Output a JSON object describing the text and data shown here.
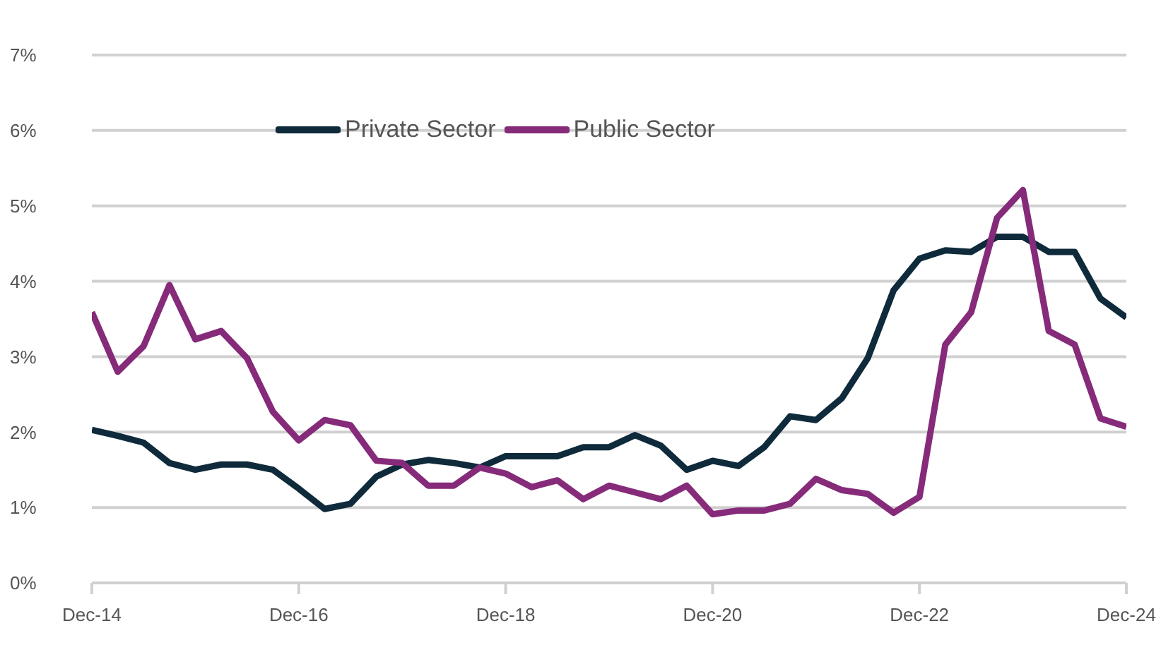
{
  "chart_data": {
    "type": "line",
    "x": [
      "2014-12",
      "2015-03",
      "2015-06",
      "2015-09",
      "2015-12",
      "2016-03",
      "2016-06",
      "2016-09",
      "2016-12",
      "2017-03",
      "2017-06",
      "2017-09",
      "2017-12",
      "2018-03",
      "2018-06",
      "2018-09",
      "2018-12",
      "2019-03",
      "2019-06",
      "2019-09",
      "2019-12",
      "2020-03",
      "2020-06",
      "2020-09",
      "2020-12",
      "2021-03",
      "2021-06",
      "2021-09",
      "2021-12",
      "2022-03",
      "2022-06",
      "2022-09",
      "2022-12",
      "2023-03",
      "2023-06",
      "2023-09",
      "2023-12",
      "2024-03",
      "2024-06",
      "2024-09",
      "2024-12"
    ],
    "series": [
      {
        "name": "Private Sector",
        "color": "#0e2a3b",
        "values": [
          2.03,
          1.95,
          1.86,
          1.59,
          1.5,
          1.57,
          1.57,
          1.5,
          1.25,
          0.98,
          1.05,
          1.41,
          1.57,
          1.63,
          1.59,
          1.53,
          1.68,
          1.68,
          1.68,
          1.8,
          1.8,
          1.96,
          1.82,
          1.5,
          1.62,
          1.55,
          1.8,
          2.21,
          2.16,
          2.45,
          2.98,
          3.88,
          4.3,
          4.41,
          4.39,
          4.59,
          4.59,
          4.39,
          4.39,
          3.77,
          3.52
        ]
      },
      {
        "name": "Public Sector",
        "color": "#862a7a",
        "values": [
          3.59,
          2.8,
          3.14,
          3.95,
          3.23,
          3.34,
          2.98,
          2.27,
          1.89,
          2.16,
          2.09,
          1.62,
          1.59,
          1.29,
          1.29,
          1.53,
          1.45,
          1.27,
          1.36,
          1.11,
          1.29,
          1.2,
          1.11,
          1.29,
          0.91,
          0.96,
          0.96,
          1.05,
          1.38,
          1.23,
          1.18,
          0.93,
          1.14,
          3.16,
          3.59,
          4.84,
          5.21,
          3.34,
          3.16,
          2.18,
          2.07
        ]
      }
    ],
    "xlim": [
      "2014-12",
      "2024-12"
    ],
    "xticks": [
      {
        "value": "2014-12",
        "label": "Dec-14"
      },
      {
        "value": "2016-12",
        "label": "Dec-16"
      },
      {
        "value": "2018-12",
        "label": "Dec-18"
      },
      {
        "value": "2020-12",
        "label": "Dec-20"
      },
      {
        "value": "2022-12",
        "label": "Dec-22"
      },
      {
        "value": "2024-12",
        "label": "Dec-24"
      }
    ],
    "ylim": [
      0,
      7
    ],
    "yticks": [
      {
        "value": 0,
        "label": "0%"
      },
      {
        "value": 1,
        "label": "1%"
      },
      {
        "value": 2,
        "label": "2%"
      },
      {
        "value": 3,
        "label": "3%"
      },
      {
        "value": 4,
        "label": "4%"
      },
      {
        "value": 5,
        "label": "5%"
      },
      {
        "value": 6,
        "label": "6%"
      },
      {
        "value": 7,
        "label": "7%"
      }
    ],
    "grid": "y",
    "legend": "top",
    "marker": "none",
    "line_style": "solid"
  }
}
